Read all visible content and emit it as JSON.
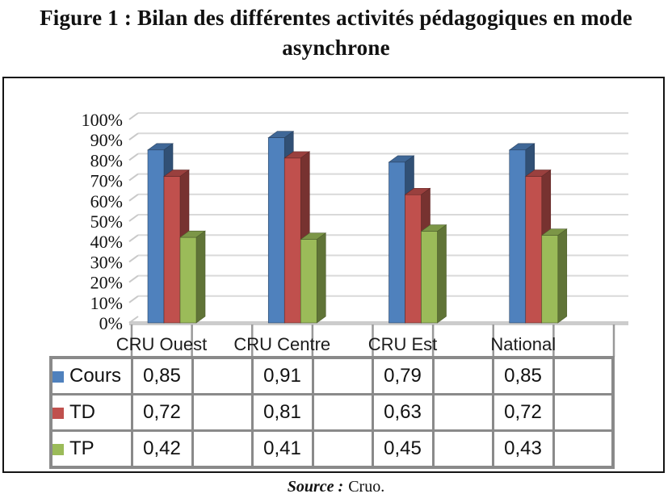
{
  "title": {
    "line1": "Figure 1 : Bilan des différentes activités pédagogiques en mode",
    "line2": "asynchrone"
  },
  "source": {
    "prefix": "Source :",
    "text": "Cruo."
  },
  "chart_data": {
    "type": "bar",
    "style": "3d-clustered",
    "title": "Bilan des différentes activités pédagogiques en mode asynchrone",
    "categories": [
      "CRU Ouest",
      "CRU Centre",
      "CRU Est",
      "National"
    ],
    "series": [
      {
        "name": "Cours",
        "color": "#4F81BD",
        "values": [
          0.85,
          0.91,
          0.79,
          0.85
        ],
        "labels": [
          "0,85",
          "0,91",
          "0,79",
          "0,85"
        ]
      },
      {
        "name": "TD",
        "color": "#C0504D",
        "values": [
          0.72,
          0.81,
          0.63,
          0.72
        ],
        "labels": [
          "0,72",
          "0,81",
          "0,63",
          "0,72"
        ]
      },
      {
        "name": "TP",
        "color": "#9BBB59",
        "values": [
          0.42,
          0.41,
          0.45,
          0.43
        ],
        "labels": [
          "0,42",
          "0,41",
          "0,45",
          "0,43"
        ]
      }
    ],
    "y_axis": {
      "min": 0,
      "max": 1,
      "step": 0.1,
      "tick_labels": [
        "0%",
        "10%",
        "20%",
        "30%",
        "40%",
        "50%",
        "60%",
        "70%",
        "80%",
        "90%",
        "100%"
      ]
    },
    "grid": true,
    "legend_position": "table-left",
    "data_table_shown": true,
    "colors": {
      "gridline": "#d9d9d9",
      "grid_diagonal": "#c9c9c9",
      "floor": "#cccccc",
      "axis_tick": "#999999",
      "table_border": "#8a8a8a"
    }
  }
}
